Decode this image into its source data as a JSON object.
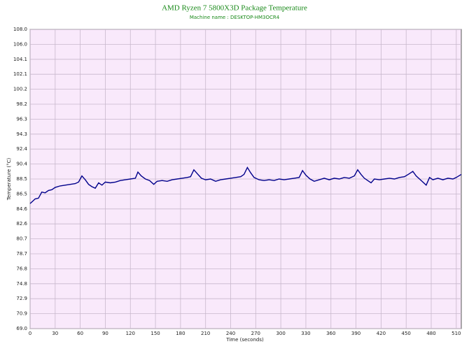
{
  "chart_data": {
    "type": "line",
    "title": "AMD Ryzen 7 5800X3D Package Temperature",
    "subtitle": "Machine name : DESKTOP-HM3OCR4",
    "x_label": "Time (seconds)",
    "y_label": "Temperature (°C)",
    "xlim": [
      0,
      516
    ],
    "ylim": [
      69,
      108
    ],
    "xticks": [
      0,
      30,
      60,
      90,
      120,
      150,
      180,
      210,
      240,
      270,
      300,
      330,
      360,
      390,
      420,
      450,
      480,
      510
    ],
    "yticks": [
      {
        "value": 69,
        "label": "69.0"
      },
      {
        "value": 70.95,
        "label": "70.9"
      },
      72.9,
      {
        "value": 74.85,
        "label": "74.8"
      },
      76.8,
      {
        "value": 78.75,
        "label": "78.7"
      },
      80.7,
      {
        "value": 82.65,
        "label": "82.6"
      },
      84.6,
      {
        "value": 86.55,
        "label": "86.5"
      },
      88.5,
      {
        "value": 90.45,
        "label": "90.4"
      },
      92.4,
      {
        "value": 94.35,
        "label": "94.3"
      },
      96.3,
      {
        "value": 98.25,
        "label": "98.2"
      },
      100.2,
      {
        "value": 102.15,
        "label": "102.1"
      },
      104.1,
      {
        "value": 106.05,
        "label": "106.0"
      },
      {
        "value": 108,
        "label": "108.0"
      }
    ],
    "grid": true,
    "background": "#f9e9fb",
    "grid_color": "#c8b8cc",
    "x": [
      0,
      3,
      6,
      10,
      14,
      18,
      22,
      26,
      30,
      36,
      42,
      48,
      54,
      58,
      62,
      66,
      70,
      74,
      78,
      82,
      86,
      90,
      96,
      102,
      108,
      114,
      120,
      126,
      129,
      133,
      138,
      143,
      148,
      152,
      158,
      164,
      170,
      176,
      182,
      188,
      192,
      196,
      200,
      205,
      210,
      216,
      222,
      228,
      234,
      240,
      246,
      252,
      256,
      260,
      264,
      268,
      274,
      280,
      286,
      292,
      298,
      304,
      310,
      316,
      322,
      326,
      330,
      335,
      340,
      346,
      352,
      358,
      364,
      370,
      376,
      382,
      388,
      392,
      396,
      400,
      404,
      408,
      412,
      418,
      424,
      430,
      436,
      442,
      448,
      454,
      458,
      462,
      466,
      470,
      474,
      478,
      482,
      488,
      494,
      500,
      506,
      510,
      516
    ],
    "series": [
      {
        "name": "Package Temperature",
        "color": "#00008b",
        "values": [
          85.3,
          85.6,
          85.9,
          86.0,
          86.8,
          86.7,
          87.0,
          87.1,
          87.4,
          87.6,
          87.7,
          87.8,
          87.9,
          88.1,
          88.9,
          88.4,
          87.8,
          87.5,
          87.3,
          88.0,
          87.7,
          88.1,
          88.0,
          88.1,
          88.3,
          88.4,
          88.5,
          88.6,
          89.4,
          88.9,
          88.5,
          88.3,
          87.8,
          88.2,
          88.3,
          88.2,
          88.4,
          88.5,
          88.6,
          88.7,
          88.8,
          89.7,
          89.2,
          88.6,
          88.4,
          88.5,
          88.2,
          88.4,
          88.5,
          88.6,
          88.7,
          88.8,
          89.1,
          90.0,
          89.3,
          88.7,
          88.4,
          88.3,
          88.4,
          88.3,
          88.5,
          88.4,
          88.5,
          88.6,
          88.7,
          89.6,
          89.0,
          88.5,
          88.2,
          88.4,
          88.6,
          88.4,
          88.6,
          88.5,
          88.7,
          88.6,
          88.9,
          89.7,
          89.1,
          88.6,
          88.3,
          88.0,
          88.5,
          88.4,
          88.5,
          88.6,
          88.5,
          88.7,
          88.8,
          89.2,
          89.5,
          88.9,
          88.5,
          88.1,
          87.7,
          88.7,
          88.4,
          88.6,
          88.4,
          88.6,
          88.5,
          88.7,
          89.1
        ]
      }
    ]
  }
}
